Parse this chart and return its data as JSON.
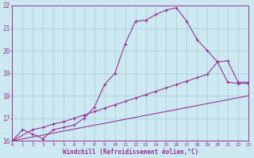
{
  "xlabel": "Windchill (Refroidissement éolien,°C)",
  "background_color": "#cce8f0",
  "grid_color": "#aaccdd",
  "line_color": "#993399",
  "xlim": [
    0,
    23
  ],
  "ylim": [
    16,
    22
  ],
  "xticks": [
    0,
    1,
    2,
    3,
    4,
    5,
    6,
    7,
    8,
    9,
    10,
    11,
    12,
    13,
    14,
    15,
    16,
    17,
    18,
    19,
    20,
    21,
    22,
    23
  ],
  "yticks": [
    16,
    17,
    18,
    19,
    20,
    21,
    22
  ],
  "line1_x": [
    0,
    1,
    2,
    3,
    4,
    5,
    6,
    7,
    8,
    9,
    10,
    11,
    12,
    13,
    14,
    15,
    16,
    17,
    18,
    19,
    20,
    21,
    22,
    23
  ],
  "line1_y": [
    16.0,
    16.5,
    16.3,
    16.1,
    16.5,
    16.6,
    16.7,
    17.0,
    17.5,
    18.5,
    19.0,
    20.3,
    21.3,
    21.35,
    21.6,
    21.8,
    21.9,
    21.3,
    20.5,
    20.0,
    19.5,
    18.6,
    18.55,
    18.55
  ],
  "line2_x": [
    0,
    2,
    3,
    4,
    5,
    6,
    7,
    8,
    9,
    10,
    11,
    12,
    13,
    14,
    15,
    16,
    17,
    18,
    19,
    20,
    21,
    22,
    23
  ],
  "line2_y": [
    16.0,
    16.5,
    16.6,
    16.75,
    16.85,
    17.0,
    17.15,
    17.3,
    17.45,
    17.6,
    17.75,
    17.9,
    18.05,
    18.2,
    18.35,
    18.5,
    18.65,
    18.8,
    18.95,
    19.5,
    19.55,
    18.6,
    18.6
  ],
  "line3_x": [
    0,
    23
  ],
  "line3_y": [
    16.0,
    18.0
  ],
  "xtick_fontsize": 4.5,
  "ytick_fontsize": 5.5,
  "xlabel_fontsize": 5.5
}
